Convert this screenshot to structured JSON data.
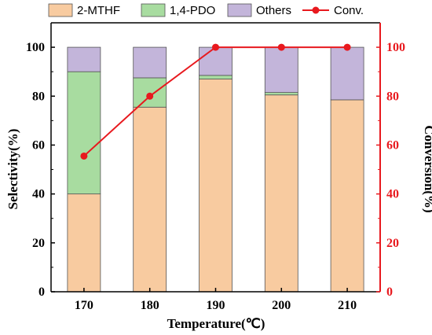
{
  "chart_data": {
    "type": "bar",
    "subtype": "stacked-bar-with-line",
    "categories": [
      "170",
      "180",
      "190",
      "200",
      "210"
    ],
    "series": [
      {
        "name": "2-MTHF",
        "values": [
          40.0,
          75.5,
          87.0,
          80.5,
          78.5
        ],
        "color": "#F8CBA0"
      },
      {
        "name": "1,4-PDO",
        "values": [
          50.0,
          12.0,
          1.5,
          1.0,
          0.0
        ],
        "color": "#A8DCA0"
      },
      {
        "name": "Others",
        "values": [
          10.0,
          12.5,
          11.5,
          18.5,
          21.5
        ],
        "color": "#C3B5DA"
      }
    ],
    "line_series": {
      "name": "Conv.",
      "axis": "right",
      "values": [
        55.5,
        80.0,
        100.0,
        100.0,
        100.0
      ],
      "color": "#E8191E"
    },
    "xlabel": "Temperature(℃)",
    "ylabel": "Selectivity(%)",
    "y2label": "Conversion(%)",
    "ylim": [
      0,
      110
    ],
    "y2lim": [
      0,
      110
    ],
    "yticks": [
      0,
      20,
      40,
      60,
      80,
      100
    ],
    "y2ticks": [
      0,
      20,
      40,
      60,
      80,
      100
    ],
    "grid": false,
    "legend_position": "top",
    "colors": {
      "axis_left": "#000000",
      "axis_right": "#E8191E"
    }
  }
}
